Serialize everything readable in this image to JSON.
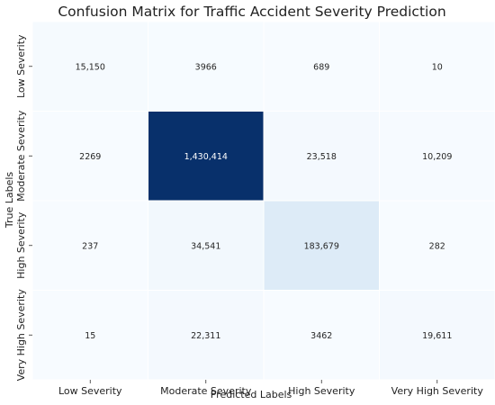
{
  "chart_data": {
    "type": "heatmap",
    "title": "Confusion Matrix for Traffic Accident Severity Prediction",
    "xlabel": "Predicted Labels",
    "ylabel": "True Labels",
    "x_categories": [
      "Low Severity",
      "Moderate Severity",
      "High Severity",
      "Very High Severity"
    ],
    "y_categories": [
      "Low Severity",
      "Moderate Severity",
      "High Severity",
      "Very High Severity"
    ],
    "values": [
      [
        15150,
        3966,
        689,
        10
      ],
      [
        2269,
        1430414,
        23518,
        10209
      ],
      [
        237,
        34541,
        183679,
        282
      ],
      [
        15,
        22311,
        3462,
        19611
      ]
    ],
    "value_labels": [
      [
        "15,150",
        "3966",
        "689",
        "10"
      ],
      [
        "2269",
        "1,430,414",
        "23,518",
        "10,209"
      ],
      [
        "237",
        "34,541",
        "183,679",
        "282"
      ],
      [
        "15",
        "22,311",
        "3462",
        "19,611"
      ]
    ],
    "colormap": "Blues",
    "color_low": "#f7fbff",
    "color_high": "#08306b",
    "grid": false,
    "colorbar": false
  }
}
